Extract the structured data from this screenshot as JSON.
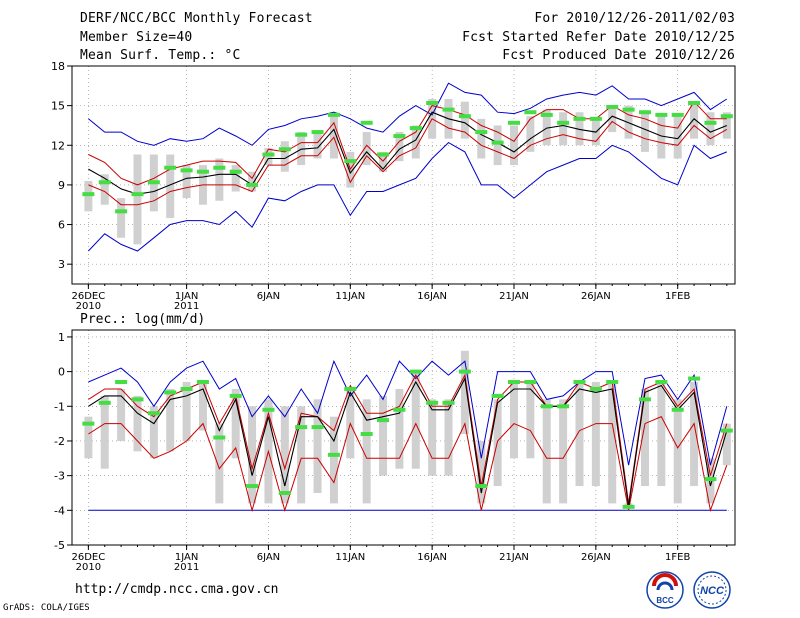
{
  "header": {
    "title": "DERF/NCC/BCC Monthly Forecast",
    "member_size": "Member Size=40",
    "variable": "Mean Surf. Temp.: °C",
    "period": "For 2010/12/26-2011/02/03",
    "fcst_start": "Fcst Started Refer Date 2010/12/25",
    "fcst_produced": "Fcst Produced Date 2010/12/26"
  },
  "footer": {
    "url": "http://cmdp.ncc.cma.gov.cn",
    "grads": "GrADS: COLA/IGES",
    "logo_bcc": "BCC",
    "logo_ncc": "NCC"
  },
  "colors": {
    "bar": "#d0d0d0",
    "median": "#44dd44",
    "mean": "#000000",
    "std": "#cc0000",
    "extreme": "#0000cc",
    "frame": "#000000"
  },
  "chart_data": [
    {
      "type": "line",
      "title": "Mean Surf. Temp.: °C",
      "ylim": [
        1.5,
        18
      ],
      "yticks": [
        3,
        6,
        9,
        12,
        15,
        18
      ],
      "ytick_labels": [
        "3",
        "6",
        "9",
        "12",
        "15",
        "18"
      ],
      "xlim": [
        -1,
        39.5
      ],
      "xtick_days": [
        0,
        6,
        11,
        16,
        21,
        26,
        31,
        36
      ],
      "xtick_labels": [
        [
          "26DEC",
          "2010"
        ],
        [
          "1JAN",
          "2011"
        ],
        [
          "6JAN",
          ""
        ],
        [
          "11JAN",
          ""
        ],
        [
          "16JAN",
          ""
        ],
        [
          "21JAN",
          ""
        ],
        [
          "26JAN",
          ""
        ],
        [
          "1FEB",
          ""
        ]
      ],
      "series": {
        "max": [
          14.0,
          13.0,
          13.0,
          12.3,
          12.0,
          12.5,
          12.3,
          12.5,
          13.3,
          12.7,
          12.0,
          13.2,
          13.5,
          14.0,
          14.2,
          14.5,
          14.0,
          13.3,
          13.0,
          14.2,
          15.0,
          14.3,
          16.7,
          16.0,
          15.8,
          14.5,
          14.4,
          14.8,
          15.5,
          15.8,
          16.0,
          15.8,
          16.5,
          15.5,
          15.5,
          15.0,
          15.5,
          16.0,
          14.7,
          15.5
        ],
        "q90": [
          11.3,
          10.7,
          9.5,
          9.0,
          9.5,
          10.2,
          10.5,
          10.8,
          10.8,
          10.7,
          9.5,
          11.7,
          11.5,
          12.2,
          12.2,
          13.7,
          10.2,
          12.0,
          10.8,
          12.3,
          13.0,
          15.0,
          14.7,
          14.3,
          13.5,
          13.0,
          12.3,
          14.0,
          14.7,
          14.7,
          14.0,
          14.0,
          15.0,
          14.3,
          14.0,
          13.5,
          13.3,
          15.3,
          14.0,
          14.0
        ],
        "mean": [
          10.2,
          9.5,
          8.7,
          8.3,
          8.5,
          9.0,
          9.5,
          9.6,
          9.8,
          9.8,
          9.0,
          11.0,
          11.0,
          11.7,
          11.8,
          13.2,
          9.9,
          11.5,
          10.2,
          11.7,
          12.4,
          14.5,
          14.0,
          13.7,
          12.8,
          12.2,
          11.5,
          12.5,
          13.3,
          13.5,
          13.2,
          13.0,
          14.2,
          13.7,
          13.2,
          12.7,
          12.5,
          14.0,
          13.0,
          13.5
        ],
        "q10": [
          9.0,
          8.5,
          7.5,
          7.5,
          7.8,
          8.5,
          8.8,
          9.0,
          9.0,
          9.0,
          8.5,
          10.5,
          10.5,
          11.2,
          11.2,
          12.6,
          9.2,
          11.2,
          10.0,
          11.2,
          11.8,
          14.0,
          13.3,
          13.0,
          12.0,
          11.5,
          11.0,
          12.0,
          12.5,
          12.8,
          12.5,
          12.3,
          13.8,
          13.0,
          12.5,
          12.2,
          12.0,
          13.5,
          12.5,
          13.2
        ],
        "min": [
          4.0,
          5.3,
          4.5,
          4.0,
          5.0,
          6.0,
          6.3,
          6.3,
          6.0,
          7.0,
          5.8,
          8.0,
          7.8,
          8.5,
          9.0,
          9.0,
          6.7,
          8.5,
          8.5,
          9.0,
          9.5,
          11.0,
          12.2,
          11.5,
          9.0,
          9.0,
          8.0,
          9.0,
          10.0,
          10.5,
          11.0,
          11.0,
          12.0,
          11.5,
          10.5,
          9.5,
          9.0,
          12.0,
          11.0,
          11.5
        ],
        "box_hi": [
          9.3,
          9.8,
          8.0,
          11.3,
          11.3,
          11.3,
          10.5,
          10.5,
          11.0,
          10.5,
          10.0,
          11.8,
          12.3,
          13.0,
          13.0,
          14.5,
          11.5,
          13.0,
          11.5,
          13.0,
          13.5,
          15.5,
          15.5,
          15.3,
          14.0,
          13.5,
          13.5,
          14.2,
          14.7,
          14.5,
          14.5,
          14.0,
          15.0,
          15.0,
          14.5,
          14.3,
          14.3,
          15.3,
          14.5,
          14.5
        ],
        "box_lo": [
          7.0,
          7.5,
          5.0,
          4.5,
          7.0,
          6.5,
          8.0,
          7.5,
          7.8,
          8.5,
          8.5,
          10.5,
          10.0,
          10.5,
          11.0,
          11.0,
          8.8,
          10.5,
          10.0,
          10.8,
          11.0,
          12.5,
          12.5,
          12.5,
          11.0,
          10.5,
          10.5,
          11.5,
          12.0,
          12.0,
          12.0,
          12.0,
          13.0,
          12.5,
          11.5,
          11.0,
          11.0,
          12.5,
          12.0,
          12.5
        ],
        "median": [
          8.3,
          9.2,
          7.0,
          8.3,
          9.2,
          10.3,
          10.1,
          10.0,
          10.3,
          10.0,
          9.0,
          11.3,
          11.7,
          12.8,
          13.0,
          14.3,
          10.8,
          13.7,
          11.3,
          12.7,
          13.3,
          15.2,
          14.7,
          14.2,
          13.0,
          12.2,
          13.7,
          14.5,
          14.3,
          13.7,
          14.0,
          14.0,
          14.9,
          14.7,
          14.5,
          14.3,
          14.3,
          15.2,
          13.7,
          14.2
        ]
      }
    },
    {
      "type": "line",
      "title": "Prec.: log(mm/d)",
      "ylim": [
        -5,
        1.2
      ],
      "yticks": [
        -5,
        -4,
        -3,
        -2,
        -1,
        0,
        1
      ],
      "ytick_labels": [
        "-5",
        "-4",
        "-3",
        "-2",
        "-1",
        "0",
        "1"
      ],
      "xlim": [
        -1,
        39.5
      ],
      "xtick_days": [
        0,
        6,
        11,
        16,
        21,
        26,
        31,
        36
      ],
      "xtick_labels": [
        [
          "26DEC",
          "2010"
        ],
        [
          "1JAN",
          "2011"
        ],
        [
          "6JAN",
          ""
        ],
        [
          "11JAN",
          ""
        ],
        [
          "16JAN",
          ""
        ],
        [
          "21JAN",
          ""
        ],
        [
          "26JAN",
          ""
        ],
        [
          "1FEB",
          ""
        ]
      ],
      "series": {
        "max": [
          -0.3,
          -0.1,
          0.1,
          -0.3,
          -1.0,
          -0.3,
          0.1,
          0.3,
          -0.5,
          -0.2,
          -1.3,
          -0.7,
          -1.3,
          -0.5,
          -1.2,
          0.3,
          -0.7,
          -0.1,
          -0.8,
          0.3,
          -0.2,
          0.3,
          -0.1,
          0.3,
          -2.5,
          0.0,
          0.0,
          0.0,
          -0.8,
          -0.7,
          -0.3,
          0.0,
          0.0,
          -2.7,
          -0.2,
          -0.1,
          -0.8,
          -0.1,
          -2.7,
          -1.0
        ],
        "q90": [
          -0.8,
          -0.5,
          -0.5,
          -1.0,
          -1.3,
          -0.7,
          -0.5,
          -0.3,
          -1.5,
          -0.7,
          -2.8,
          -1.2,
          -2.8,
          -1.2,
          -1.3,
          -1.7,
          -0.4,
          -1.2,
          -1.2,
          -1.0,
          -0.1,
          -1.0,
          -1.0,
          -0.1,
          -3.3,
          -0.8,
          -0.3,
          -0.3,
          -1.0,
          -1.0,
          -0.3,
          -0.5,
          -0.3,
          -3.8,
          -0.5,
          -0.3,
          -1.0,
          -0.5,
          -3.0,
          -1.5
        ],
        "mean": [
          -1.0,
          -0.7,
          -0.7,
          -1.2,
          -1.5,
          -0.8,
          -0.7,
          -0.5,
          -1.7,
          -0.8,
          -3.0,
          -1.3,
          -3.3,
          -1.3,
          -1.3,
          -2.0,
          -0.6,
          -1.4,
          -1.3,
          -1.2,
          -0.3,
          -1.1,
          -1.1,
          -0.2,
          -3.5,
          -0.9,
          -0.5,
          -0.5,
          -1.0,
          -1.0,
          -0.5,
          -0.6,
          -0.5,
          -3.9,
          -0.6,
          -0.4,
          -1.1,
          -0.6,
          -3.3,
          -1.7
        ],
        "q10": [
          -1.8,
          -1.5,
          -1.5,
          -2.0,
          -2.5,
          -2.3,
          -2.0,
          -1.5,
          -2.8,
          -2.2,
          -4.0,
          -2.3,
          -4.0,
          -2.5,
          -2.5,
          -3.2,
          -1.5,
          -2.5,
          -2.5,
          -2.5,
          -1.5,
          -2.5,
          -2.5,
          -1.5,
          -4.0,
          -2.0,
          -1.5,
          -1.7,
          -2.5,
          -2.5,
          -1.7,
          -1.5,
          -1.5,
          -4.0,
          -1.5,
          -1.3,
          -2.2,
          -1.5,
          -4.0,
          -2.7
        ],
        "min": [
          -4.0,
          -4.0,
          -4.0,
          -4.0,
          -4.0,
          -4.0,
          -4.0,
          -4.0,
          -4.0,
          -4.0,
          -4.0,
          -4.0,
          -4.0,
          -4.0,
          -4.0,
          -4.0,
          -4.0,
          -4.0,
          -4.0,
          -4.0,
          -4.0,
          -4.0,
          -4.0,
          -4.0,
          -4.0,
          -4.0,
          -4.0,
          -4.0,
          -4.0,
          -4.0,
          -4.0,
          -4.0,
          -4.0,
          -4.0,
          -4.0,
          -4.0,
          -4.0,
          -4.0,
          -4.0,
          -4.0
        ],
        "box_hi": [
          -1.3,
          -0.7,
          -0.5,
          -0.7,
          -1.0,
          -0.5,
          -0.3,
          -0.3,
          -1.5,
          -0.5,
          -1.0,
          -0.8,
          -1.0,
          -1.0,
          -0.8,
          -1.3,
          -0.5,
          -0.8,
          -0.7,
          -0.5,
          0.0,
          -0.8,
          -0.8,
          0.6,
          -2.0,
          -0.8,
          -0.3,
          -0.3,
          -0.8,
          -0.8,
          -0.3,
          -0.3,
          -0.3,
          -3.8,
          -0.5,
          -0.3,
          -0.8,
          -0.3,
          -2.5,
          -1.5
        ],
        "box_lo": [
          -2.5,
          -2.8,
          -2.0,
          -2.3,
          -2.5,
          -2.3,
          -2.0,
          -1.7,
          -3.8,
          -2.5,
          -3.8,
          -3.8,
          -3.8,
          -3.8,
          -3.5,
          -3.8,
          -2.5,
          -3.8,
          -3.0,
          -2.8,
          -2.8,
          -3.0,
          -3.0,
          -1.8,
          -3.8,
          -3.3,
          -2.5,
          -2.5,
          -3.8,
          -3.8,
          -3.3,
          -3.3,
          -3.8,
          -3.9,
          -3.3,
          -3.3,
          -3.8,
          -3.3,
          -3.8,
          -2.7
        ],
        "median": [
          -1.5,
          -0.9,
          -0.3,
          -0.8,
          -1.2,
          -0.6,
          -0.5,
          -0.3,
          -1.9,
          -0.7,
          -3.3,
          -1.1,
          -3.5,
          -1.6,
          -1.6,
          -2.4,
          -0.5,
          -1.8,
          -1.4,
          -1.1,
          0.0,
          -0.9,
          -0.9,
          0.0,
          -3.3,
          -0.7,
          -0.3,
          -0.3,
          -1.0,
          -1.0,
          -0.3,
          -0.5,
          -0.3,
          -3.9,
          -0.8,
          -0.3,
          -1.1,
          -0.2,
          -3.1,
          -1.7
        ]
      }
    }
  ]
}
